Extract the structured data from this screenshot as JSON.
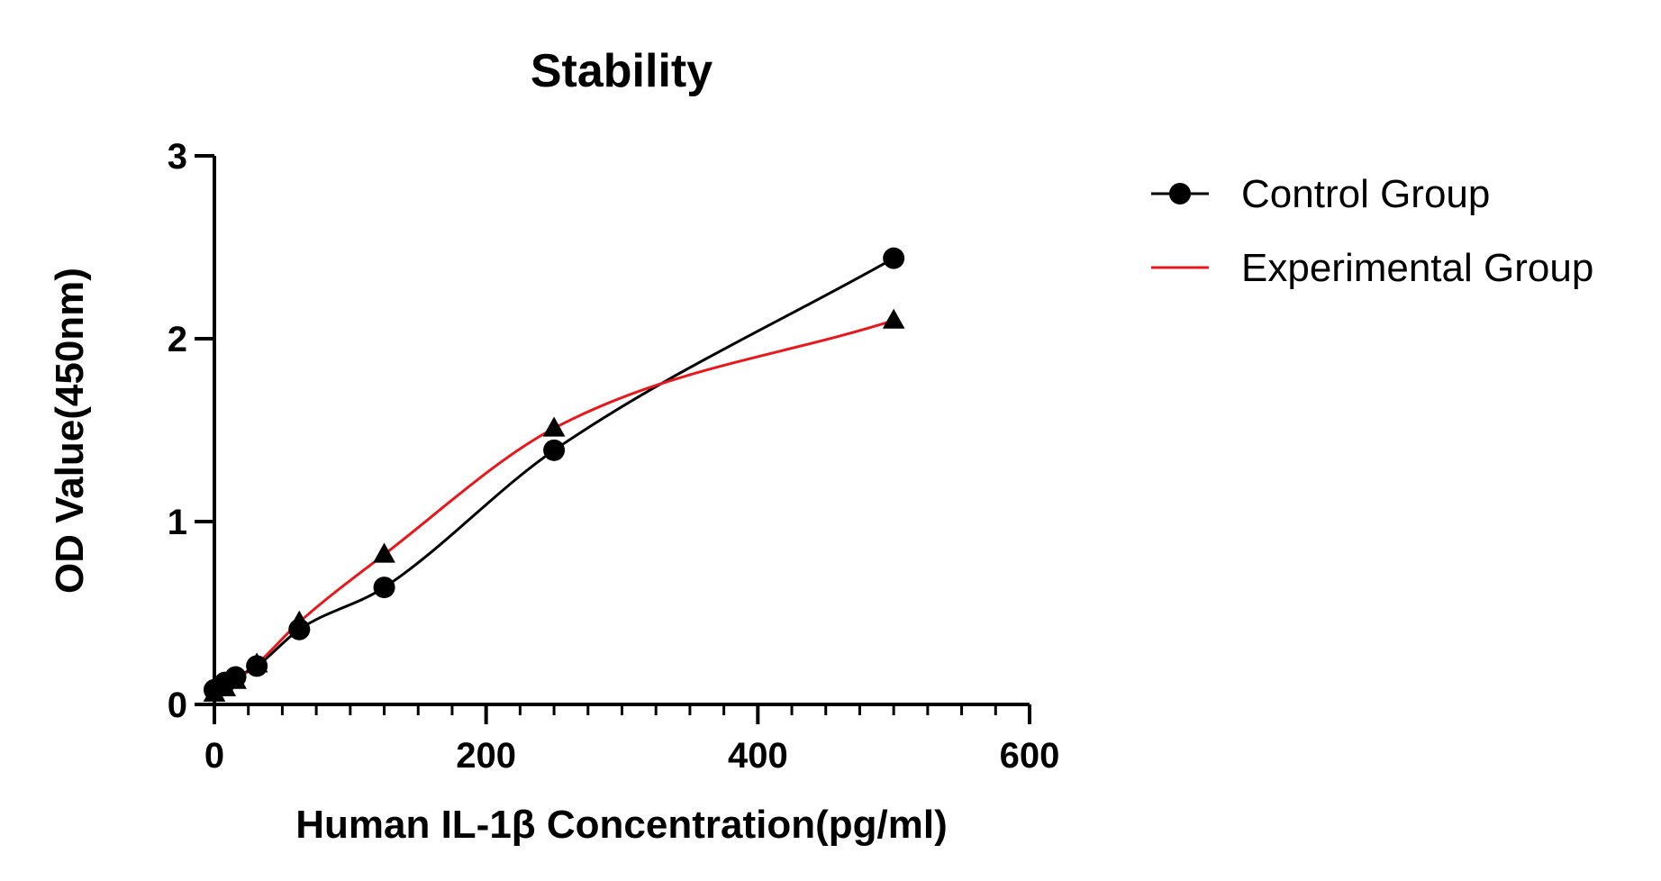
{
  "chart_data": {
    "type": "scatter",
    "title": "Stability",
    "xlabel": "Human IL-1β Concentration(pg/ml)",
    "ylabel": "OD Value(450nm)",
    "xlim": [
      0,
      600
    ],
    "ylim": [
      0,
      3
    ],
    "xticks": [
      0,
      200,
      400,
      600
    ],
    "xtick_labels": [
      "0",
      "200",
      "400",
      "600"
    ],
    "yticks": [
      0,
      1,
      2,
      3
    ],
    "ytick_labels": [
      "0",
      "1",
      "2",
      "3"
    ],
    "grid": false,
    "legend": "right",
    "series": [
      {
        "name": "Control Group",
        "marker": "circle",
        "color": "#000000",
        "x": [
          0,
          7.8,
          15.6,
          31.25,
          62.5,
          125,
          250,
          500
        ],
        "y": [
          0.08,
          0.12,
          0.15,
          0.21,
          0.41,
          0.64,
          1.39,
          2.44
        ]
      },
      {
        "name": "Experimental Group",
        "marker": "triangle",
        "color": "#e8171b",
        "x": [
          0,
          7.8,
          15.6,
          31.25,
          62.5,
          125,
          250,
          500
        ],
        "y": [
          0.06,
          0.09,
          0.13,
          0.22,
          0.45,
          0.82,
          1.51,
          2.1
        ]
      }
    ]
  }
}
